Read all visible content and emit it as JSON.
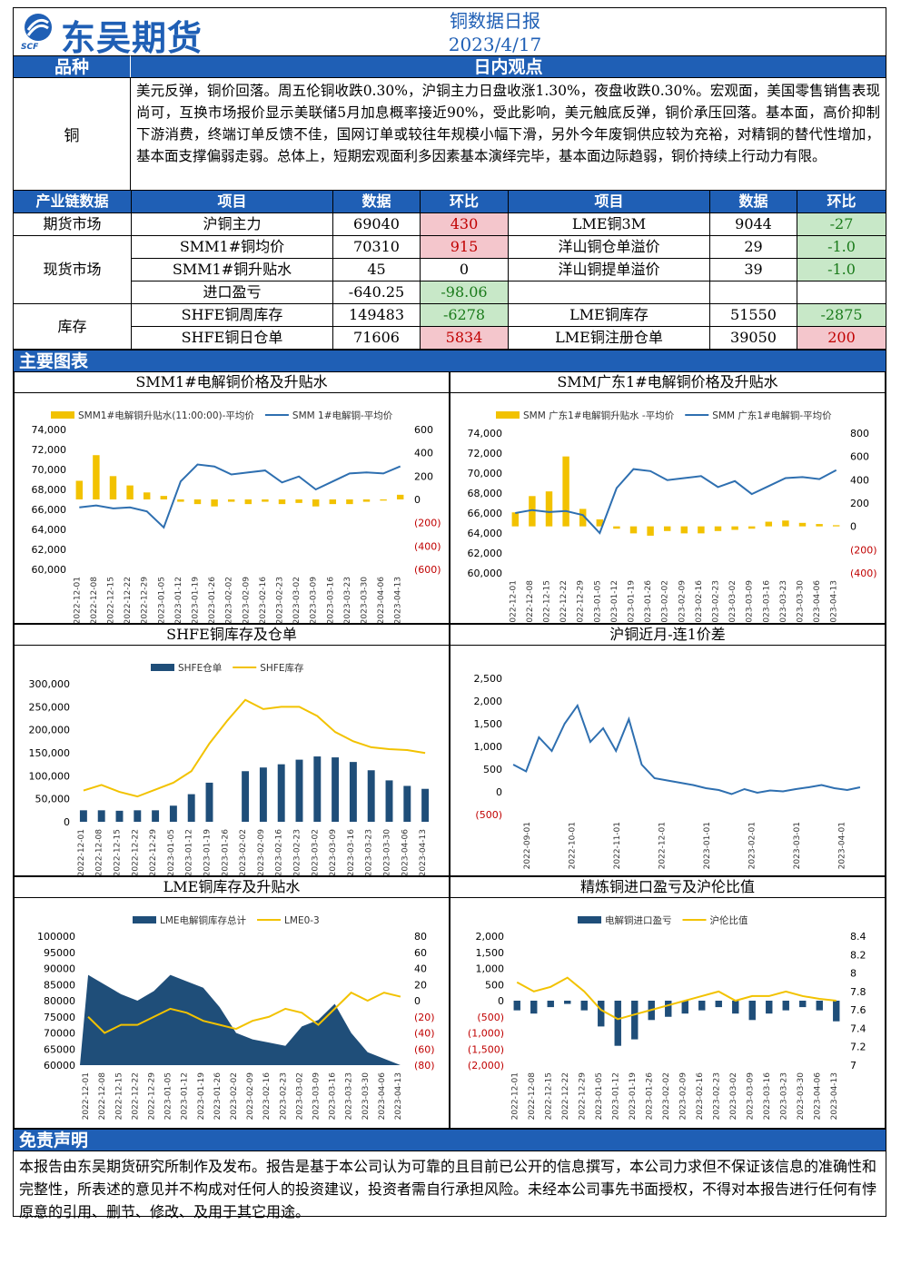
{
  "header": {
    "logo_text": "东吴期货",
    "logo_sub": "SCF",
    "title": "铜数据日报",
    "date": "2023/4/17"
  },
  "view": {
    "col1_header": "品种",
    "col2_header": "日内观点",
    "variety": "铜",
    "text": "美元反弹，铜价回落。周五伦铜收跌0.30%，沪铜主力日盘收涨1.30%，夜盘收跌0.30%。宏观面，美国零售销售表现尚可，互换市场报价显示美联储5月加息概率接近90%，受此影响，美元触底反弹，铜价承压回落。基本面，高价抑制下游消费，终端订单反馈不佳，国网订单或较往年规模小幅下滑，另外今年废铜供应较为充裕，对精铜的替代性增加，基本面支撑偏弱走弱。总体上，短期宏观面利多因素基本演绎完毕，基本面边际趋弱，铜价持续上行动力有限。"
  },
  "industry": {
    "headers": [
      "产业链数据",
      "项目",
      "数据",
      "环比",
      "项目",
      "数据",
      "环比"
    ],
    "groups": [
      {
        "name": "期货市场",
        "rows": [
          {
            "item1": "沪铜主力",
            "val1": "69040",
            "chg1": "430",
            "c1": "red",
            "item2": "LME铜3M",
            "val2": "9044",
            "chg2": "-27",
            "c2": "green"
          }
        ]
      },
      {
        "name": "现货市场",
        "rows": [
          {
            "item1": "SMM1#铜均价",
            "val1": "70310",
            "chg1": "915",
            "c1": "red",
            "item2": "洋山铜仓单溢价",
            "val2": "29",
            "chg2": "-1.0",
            "c2": "green"
          },
          {
            "item1": "SMM1#铜升贴水",
            "val1": "45",
            "chg1": "0",
            "c1": "",
            "item2": "洋山铜提单溢价",
            "val2": "39",
            "chg2": "-1.0",
            "c2": "green"
          },
          {
            "item1": "进口盈亏",
            "val1": "-640.25",
            "chg1": "-98.06",
            "c1": "green",
            "item2": "",
            "val2": "",
            "chg2": "",
            "c2": ""
          }
        ]
      },
      {
        "name": "库存",
        "rows": [
          {
            "item1": "SHFE铜周库存",
            "val1": "149483",
            "chg1": "-6278",
            "c1": "green",
            "item2": "LME铜库存",
            "val2": "51550",
            "chg2": "-2875",
            "c2": "green"
          },
          {
            "item1": "SHFE铜日仓单",
            "val1": "71606",
            "chg1": "5834",
            "c1": "red",
            "item2": "LME铜注册仓单",
            "val2": "39050",
            "chg2": "200",
            "c2": "red"
          }
        ]
      }
    ]
  },
  "charts_header": "主要图表",
  "disclaimer": {
    "header": "免责声明",
    "text": "本报告由东吴期货研究所制作及发布。报告是基于本公司认为可靠的且目前已公开的信息撰写，本公司力求但不保证该信息的准确性和完整性，所表述的意见并不构成对任何人的投资建议，投资者需自行承担风险。未经本公司事先书面授权，不得对本报告进行任何有悖原意的引用、删节、修改、及用于其它用途。"
  },
  "colors": {
    "brand": "#1f5fb5",
    "bar": "#f2c200",
    "line": "#2e6fb0",
    "navy": "#1f4e79",
    "up": "#c00000",
    "down": "#1a7a1a"
  },
  "chart_data": [
    {
      "type": "bar",
      "title": "SMM1#电解铜价格及升贴水",
      "legend_position": "top",
      "x": [
        "2022-12-01",
        "2022-12-08",
        "2022-12-15",
        "2022-12-22",
        "2022-12-29",
        "2023-01-05",
        "2023-01-12",
        "2023-01-19",
        "2023-01-26",
        "2023-02-02",
        "2023-02-09",
        "2023-02-16",
        "2023-02-23",
        "2023-03-02",
        "2023-03-09",
        "2023-03-16",
        "2023-03-23",
        "2023-03-30",
        "2023-04-06",
        "2023-04-13"
      ],
      "x_ticks": [
        "2022-12-01",
        "2022-12-08",
        "2022-12-15",
        "2022-12-22",
        "2022-12-29",
        "2023-01-05",
        "2023-01-12",
        "2023-01-19",
        "2023-01-26",
        "2023-02-02",
        "2023-02-09",
        "2023-02-16",
        "2023-02-23",
        "2023-03-02",
        "2023-03-09",
        "2023-03-16",
        "2023-03-23",
        "2023-03-30",
        "2023-04-06",
        "2023-04-13"
      ],
      "series": [
        {
          "name": "SMM1#电解铜升贴水(11:00:00)-平均价",
          "kind": "bar",
          "axis": "right",
          "values": [
            160,
            380,
            200,
            120,
            60,
            30,
            -20,
            -40,
            -60,
            -20,
            -40,
            -20,
            -40,
            -30,
            -60,
            -40,
            -40,
            -20,
            -10,
            40
          ]
        },
        {
          "name": "SMM 1#电解铜-平均价",
          "kind": "line",
          "axis": "left",
          "values": [
            66200,
            66400,
            66100,
            66200,
            65800,
            64200,
            68800,
            70500,
            70300,
            69500,
            69700,
            69900,
            68700,
            69300,
            68000,
            68800,
            69600,
            69700,
            69600,
            70310
          ]
        }
      ],
      "ylim_left": [
        60000,
        74000
      ],
      "yticks_left": [
        "74,000",
        "72,000",
        "70,000",
        "68,000",
        "66,000",
        "64,000",
        "62,000",
        "60,000"
      ],
      "ylim_right": [
        -600,
        600
      ],
      "yticks_right": [
        "600",
        "400",
        "200",
        "0",
        "(200)",
        "(400)",
        "(600)"
      ]
    },
    {
      "type": "bar",
      "title": "SMM广东1#电解铜价格及升贴水",
      "legend_position": "top",
      "x": [
        "2022-12-01",
        "2022-12-08",
        "2022-12-15",
        "2022-12-22",
        "2022-12-29",
        "2023-01-05",
        "2023-01-12",
        "2023-01-19",
        "2023-01-26",
        "2023-02-02",
        "2023-02-09",
        "2023-02-16",
        "2023-02-23",
        "2023-03-02",
        "2023-03-09",
        "2023-03-16",
        "2023-03-23",
        "2023-03-30",
        "2023-04-06",
        "2023-04-13"
      ],
      "x_ticks": [
        "2022-12-01",
        "2022-12-08",
        "2022-12-15",
        "2022-12-22",
        "2022-12-29",
        "2023-01-05",
        "2023-01-12",
        "2023-01-19",
        "2023-01-26",
        "2023-02-02",
        "2023-02-09",
        "2023-02-16",
        "2023-02-23",
        "2023-03-02",
        "2023-03-09",
        "2023-03-16",
        "2023-03-23",
        "2023-03-30",
        "2023-04-06",
        "2023-04-13"
      ],
      "series": [
        {
          "name": "SMM 广东1#电解铜升贴水 -平均价",
          "kind": "bar",
          "axis": "right",
          "values": [
            120,
            260,
            300,
            600,
            150,
            60,
            -20,
            -60,
            -80,
            -40,
            -60,
            -60,
            -40,
            -30,
            -20,
            40,
            50,
            30,
            20,
            10
          ]
        },
        {
          "name": "SMM 广东1#电解铜-平均价",
          "kind": "line",
          "axis": "left",
          "values": [
            66000,
            66300,
            66100,
            66200,
            65800,
            64000,
            68500,
            70400,
            70200,
            69300,
            69500,
            69700,
            68600,
            69200,
            67900,
            68700,
            69500,
            69600,
            69400,
            70300
          ]
        }
      ],
      "ylim_left": [
        60000,
        74000
      ],
      "yticks_left": [
        "74,000",
        "72,000",
        "70,000",
        "68,000",
        "66,000",
        "64,000",
        "62,000",
        "60,000"
      ],
      "ylim_right": [
        -400,
        800
      ],
      "yticks_right": [
        "800",
        "600",
        "400",
        "200",
        "0",
        "(200)",
        "(400)"
      ]
    },
    {
      "type": "bar",
      "title": "SHFE铜库存及仓单",
      "legend_position": "top",
      "x": [
        "2022-12-01",
        "2022-12-08",
        "2022-12-15",
        "2022-12-22",
        "2022-12-29",
        "2023-01-05",
        "2023-01-12",
        "2023-01-19",
        "2023-01-26",
        "2023-02-02",
        "2023-02-09",
        "2023-02-16",
        "2023-02-23",
        "2023-03-02",
        "2023-03-09",
        "2023-03-16",
        "2023-03-23",
        "2023-03-30",
        "2023-04-06",
        "2023-04-13"
      ],
      "x_ticks": [
        "2022-12-01",
        "2022-12-08",
        "2022-12-15",
        "2022-12-22",
        "2022-12-29",
        "2023-01-05",
        "2023-01-12",
        "2023-01-19",
        "2023-01-26",
        "2023-02-02",
        "2023-02-09",
        "2023-02-16",
        "2023-02-23",
        "2023-03-02",
        "2023-03-09",
        "2023-03-16",
        "2023-03-23",
        "2023-03-30",
        "2023-04-06",
        "2023-04-13"
      ],
      "series": [
        {
          "name": "SHFE仓单",
          "kind": "bar",
          "values": [
            25000,
            25000,
            24000,
            25000,
            25000,
            35000,
            60000,
            85000,
            0,
            110000,
            118000,
            125000,
            135000,
            142000,
            140000,
            130000,
            112000,
            90000,
            78000,
            71606
          ]
        },
        {
          "name": "SHFE库存",
          "kind": "line",
          "values": [
            68000,
            80000,
            65000,
            55000,
            70000,
            85000,
            110000,
            170000,
            220000,
            265000,
            245000,
            250000,
            250000,
            230000,
            195000,
            175000,
            162000,
            158000,
            156000,
            149483
          ]
        }
      ],
      "ylim": [
        0,
        300000
      ],
      "yticks": [
        "300,000",
        "250,000",
        "200,000",
        "150,000",
        "100,000",
        "50,000",
        "0"
      ]
    },
    {
      "type": "line",
      "title": "沪铜近月-连1价差",
      "x_ticks": [
        "2022-09-01",
        "2022-10-01",
        "2022-11-01",
        "2022-12-01",
        "2023-01-01",
        "2023-02-01",
        "2023-03-01",
        "2023-04-01"
      ],
      "series": [
        {
          "name": "沪铜近月-连1价差",
          "values": [
            600,
            450,
            1200,
            900,
            1500,
            1900,
            1100,
            1400,
            900,
            1600,
            600,
            300,
            250,
            200,
            150,
            80,
            40,
            -50,
            60,
            -20,
            30,
            10,
            60,
            100,
            150,
            80,
            40,
            100
          ]
        }
      ],
      "ylim": [
        -500,
        2500
      ],
      "yticks": [
        "2,500",
        "2,000",
        "1,500",
        "1,000",
        "500",
        "0",
        "(500)"
      ]
    },
    {
      "type": "area",
      "title": "LME铜库存及升贴水",
      "legend_position": "top",
      "x_ticks": [
        "2022-12-01",
        "2022-12-08",
        "2022-12-15",
        "2022-12-22",
        "2022-12-29",
        "2023-01-05",
        "2023-01-12",
        "2023-01-19",
        "2023-01-26",
        "2023-02-02",
        "2023-02-09",
        "2023-02-16",
        "2023-02-23",
        "2023-03-02",
        "2023-03-09",
        "2023-03-16",
        "2023-03-23",
        "2023-03-30",
        "2023-04-06",
        "2023-04-13"
      ],
      "series": [
        {
          "name": "LME电解铜库存总计",
          "kind": "area",
          "axis": "left",
          "values": [
            88000,
            85000,
            82000,
            80000,
            83000,
            88000,
            86000,
            84000,
            78000,
            70000,
            68000,
            67000,
            66000,
            72000,
            74000,
            79000,
            70000,
            64000,
            62000,
            60000
          ]
        },
        {
          "name": "LME0-3",
          "kind": "line",
          "axis": "right",
          "values": [
            -20,
            -40,
            -30,
            -30,
            -20,
            -10,
            -15,
            -25,
            -30,
            -35,
            -25,
            -20,
            -10,
            -15,
            -30,
            -10,
            10,
            0,
            10,
            5
          ]
        }
      ],
      "ylim_left": [
        60000,
        100000
      ],
      "yticks_left": [
        "100000",
        "95000",
        "90000",
        "85000",
        "80000",
        "75000",
        "70000",
        "65000",
        "60000"
      ],
      "ylim_right": [
        -80,
        80
      ],
      "yticks_right": [
        "80",
        "60",
        "40",
        "20",
        "0",
        "(20)",
        "(40)",
        "(60)",
        "(80)"
      ]
    },
    {
      "type": "bar",
      "title": "精炼铜进口盈亏及沪伦比值",
      "legend_position": "top",
      "x_ticks": [
        "2022-12-01",
        "2022-12-08",
        "2022-12-15",
        "2022-12-22",
        "2022-12-29",
        "2023-01-05",
        "2023-01-12",
        "2023-01-19",
        "2023-01-26",
        "2023-02-02",
        "2023-02-09",
        "2023-02-16",
        "2023-02-23",
        "2023-03-02",
        "2023-03-09",
        "2023-03-16",
        "2023-03-23",
        "2023-03-30",
        "2023-04-06",
        "2023-04-13"
      ],
      "series": [
        {
          "name": "电解铜进口盈亏",
          "kind": "bar",
          "axis": "left",
          "values": [
            -300,
            -400,
            -200,
            -100,
            -300,
            -800,
            -1400,
            -1200,
            -600,
            -500,
            -400,
            -300,
            -200,
            -400,
            -600,
            -400,
            -300,
            -200,
            -300,
            -640
          ]
        },
        {
          "name": "沪伦比值",
          "kind": "line",
          "axis": "right",
          "values": [
            7.9,
            7.8,
            7.85,
            7.95,
            7.8,
            7.6,
            7.5,
            7.55,
            7.6,
            7.65,
            7.7,
            7.75,
            7.8,
            7.7,
            7.75,
            7.75,
            7.8,
            7.75,
            7.72,
            7.7
          ]
        }
      ],
      "ylim_left": [
        -2000,
        2000
      ],
      "yticks_left": [
        "2,000",
        "1,500",
        "1,000",
        "500",
        "0",
        "(500)",
        "(1,000)",
        "(1,500)",
        "(2,000)"
      ],
      "ylim_right": [
        7,
        8.4
      ],
      "yticks_right": [
        "8.4",
        "8.2",
        "8",
        "7.8",
        "7.6",
        "7.4",
        "7.2",
        "7"
      ]
    }
  ]
}
